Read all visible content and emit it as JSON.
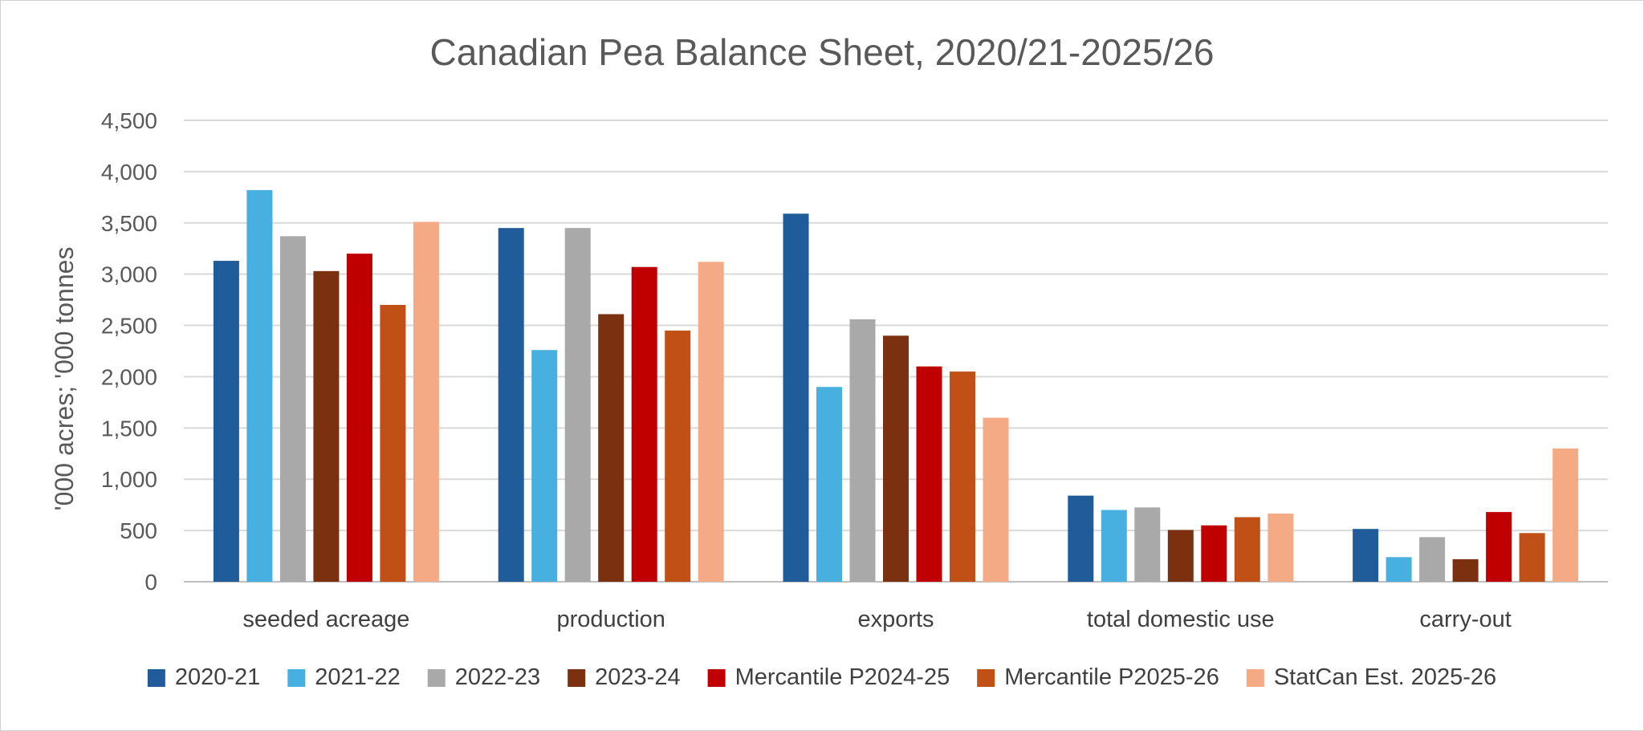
{
  "chart_data": {
    "type": "bar",
    "title": "Canadian Pea Balance Sheet, 2020/21-2025/26",
    "xlabel": "",
    "ylabel": "'000 acres; '000 tonnes",
    "ylim": [
      0,
      4500
    ],
    "yticks": [
      0,
      500,
      1000,
      1500,
      2000,
      2500,
      3000,
      3500,
      4000,
      4500
    ],
    "ytick_labels": [
      "0",
      "500",
      "1,000",
      "1,500",
      "2,000",
      "2,500",
      "3,000",
      "3,500",
      "4,000",
      "4,500"
    ],
    "grid": true,
    "legend_position": "bottom",
    "categories": [
      "seeded acreage",
      "production",
      "exports",
      "total domestic use",
      "carry-out"
    ],
    "series": [
      {
        "name": "2020-21",
        "color": "#1f5c99",
        "values": [
          3130,
          3450,
          3590,
          840,
          515
        ]
      },
      {
        "name": "2021-22",
        "color": "#47b0e0",
        "values": [
          3820,
          2260,
          1900,
          700,
          240
        ]
      },
      {
        "name": "2022-23",
        "color": "#a9a9a9",
        "values": [
          3370,
          3450,
          2560,
          725,
          435
        ]
      },
      {
        "name": "2023-24",
        "color": "#7b3010",
        "values": [
          3030,
          2610,
          2400,
          505,
          220
        ]
      },
      {
        "name": "Mercantile P2024-25",
        "color": "#c00000",
        "values": [
          3200,
          3070,
          2100,
          550,
          680
        ]
      },
      {
        "name": "Mercantile P2025-26",
        "color": "#c05016",
        "values": [
          2700,
          2450,
          2050,
          630,
          475
        ]
      },
      {
        "name": "StatCan Est. 2025-26",
        "color": "#f4aa85",
        "values": [
          3510,
          3120,
          1600,
          665,
          1300
        ]
      }
    ]
  }
}
